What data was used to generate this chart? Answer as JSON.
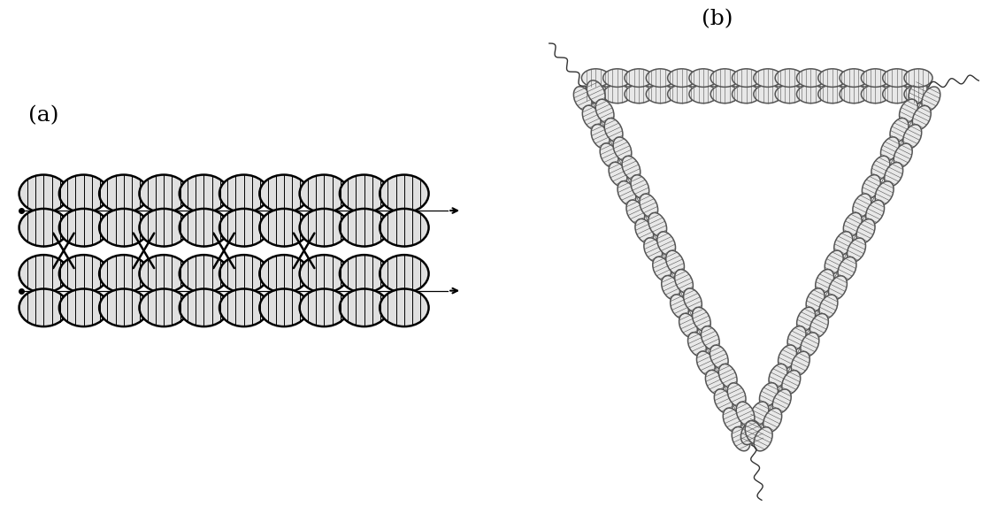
{
  "bg_color": "#ffffff",
  "label_a": "(a)",
  "label_b": "(b)",
  "label_fontsize": 18,
  "helix_color_a": "#000000",
  "helix_fill_a": "#e0e0e0",
  "helix_lw_a": 1.8,
  "helix_hatch_lw_a": 0.7,
  "helix_color_b": "#555555",
  "helix_fill_b": "#e8e8e8",
  "helix_lw_b": 1.1,
  "helix_hatch_lw_b": 0.4
}
